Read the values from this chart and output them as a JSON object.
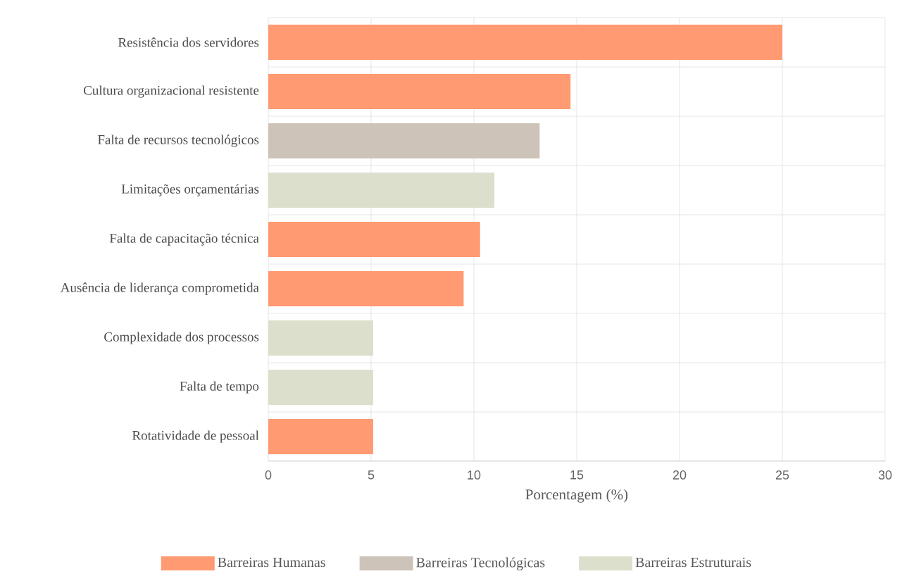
{
  "chart_data": {
    "type": "bar",
    "orientation": "horizontal",
    "xlabel": "Porcentagem (%)",
    "categories": [
      "Resistência dos servidores",
      "Cultura organizacional resistente",
      "Falta de recursos tecnológicos",
      "Limitações orçamentárias",
      "Falta de capacitação técnica",
      "Ausência de liderança comprometida",
      "Complexidade dos processos",
      "Falta de tempo",
      "Rotatividade de pessoal"
    ],
    "series": [
      {
        "name": "Barreiras Humanas",
        "color": "#ff9a72",
        "values": [
          25,
          14.7,
          null,
          null,
          10.3,
          9.5,
          null,
          null,
          5.1
        ]
      },
      {
        "name": "Barreiras Tecnológicas",
        "color": "#cdc3b8",
        "values": [
          null,
          null,
          13.2,
          null,
          null,
          null,
          null,
          null,
          null
        ]
      },
      {
        "name": "Barreiras Estruturais",
        "color": "#dcdfcb",
        "values": [
          null,
          null,
          null,
          11.0,
          null,
          null,
          5.1,
          5.1,
          null
        ]
      }
    ],
    "xlim": [
      0,
      30
    ],
    "xticks": [
      0,
      5,
      10,
      15,
      20,
      25,
      30
    ],
    "grid": true,
    "legend": "bottom"
  }
}
